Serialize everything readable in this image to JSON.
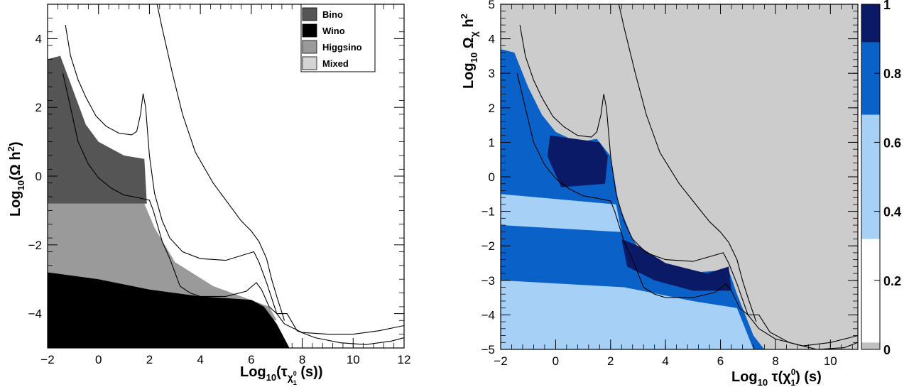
{
  "chart_data": [
    {
      "type": "scatter",
      "xlabel_main": "Log",
      "xlabel_sub": "10",
      "xlabel_rest": "(τ",
      "xlabel_chi": "χ",
      "xlabel_chi_sub": "1",
      "xlabel_chi_sup": "0",
      "xlabel_tail": " (s))",
      "ylabel_main": "Log",
      "ylabel_sub": "10",
      "ylabel_rest": "(Ω h",
      "ylabel_sup": "2",
      "ylabel_tail": ")",
      "xlim": [
        -2,
        12
      ],
      "ylim": [
        -5,
        5
      ],
      "xticks": [
        -2,
        0,
        2,
        4,
        6,
        8,
        10,
        12
      ],
      "xtick_labels": [
        "−2",
        "0",
        "2",
        "4",
        "6",
        "8",
        "10",
        "12"
      ],
      "yticks": [
        -4,
        -2,
        0,
        2,
        4
      ],
      "ytick_labels": [
        "−4",
        "−2",
        "0",
        "2",
        "4"
      ],
      "legend": [
        {
          "name": "Bino",
          "color": "#555555"
        },
        {
          "name": "Wino",
          "color": "#000000"
        },
        {
          "name": "Higgsino",
          "color": "#9a9a9a"
        },
        {
          "name": "Mixed",
          "color": "#d4d4d4"
        }
      ],
      "legend_position": "top-right",
      "regions": [
        {
          "name": "Higgsino",
          "color": "#9a9a9a",
          "polygon": [
            [
              -2,
              -0.8
            ],
            [
              1.8,
              -0.8
            ],
            [
              2.2,
              -1.5
            ],
            [
              3,
              -2.5
            ],
            [
              4.5,
              -3.2
            ],
            [
              6.7,
              -3.8
            ],
            [
              7,
              -4.2
            ],
            [
              6.5,
              -4.2
            ],
            [
              4,
              -3.6
            ],
            [
              -2,
              -3.2
            ]
          ]
        },
        {
          "name": "Bino",
          "color": "#555555",
          "polygon": [
            [
              -2,
              3.4
            ],
            [
              -1.5,
              3.5
            ],
            [
              -1,
              2.5
            ],
            [
              -0.5,
              1.5
            ],
            [
              0,
              1
            ],
            [
              1,
              0.6
            ],
            [
              1.8,
              0.5
            ],
            [
              1.9,
              -0.8
            ],
            [
              -2,
              -0.8
            ]
          ]
        },
        {
          "name": "Wino",
          "color": "#000000",
          "polygon": [
            [
              -2,
              -2.8
            ],
            [
              0,
              -3
            ],
            [
              2,
              -3.3
            ],
            [
              4,
              -3.5
            ],
            [
              6,
              -3.6
            ],
            [
              6.5,
              -3.8
            ],
            [
              7,
              -4.3
            ],
            [
              7.5,
              -5
            ],
            [
              -2,
              -5
            ]
          ]
        }
      ],
      "curves": [
        [
          [
            -1.3,
            4.4
          ],
          [
            -1.1,
            3.5
          ],
          [
            -0.8,
            2.8
          ],
          [
            -0.5,
            2.3
          ],
          [
            -0.1,
            1.75
          ],
          [
            0.3,
            1.45
          ],
          [
            0.8,
            1.25
          ],
          [
            1.3,
            1.2
          ],
          [
            1.5,
            1.3
          ],
          [
            1.65,
            1.8
          ],
          [
            1.75,
            2.4
          ],
          [
            1.85,
            2.0
          ],
          [
            2.0,
            0.6
          ],
          [
            2.2,
            -0.5
          ],
          [
            2.5,
            -1.3
          ],
          [
            2.8,
            -1.8
          ],
          [
            3.3,
            -2.2
          ],
          [
            4.0,
            -2.4
          ],
          [
            5.0,
            -2.45
          ],
          [
            6.1,
            -2.2
          ],
          [
            6.3,
            -2.5
          ],
          [
            6.6,
            -3.1
          ],
          [
            7.0,
            -4.0
          ],
          [
            7.3,
            -4.3
          ],
          [
            8.0,
            -4.55
          ],
          [
            9.0,
            -4.6
          ],
          [
            10.0,
            -4.6
          ],
          [
            11.0,
            -4.5
          ],
          [
            12.0,
            -4.35
          ]
        ],
        [
          [
            -1.4,
            3.0
          ],
          [
            -1.1,
            2.0
          ],
          [
            -0.8,
            1.0
          ],
          [
            -0.4,
            0.35
          ],
          [
            0,
            -0.05
          ],
          [
            0.5,
            -0.35
          ],
          [
            1.0,
            -0.55
          ],
          [
            1.5,
            -0.62
          ],
          [
            2.0,
            -0.7
          ],
          [
            2.15,
            -1.0
          ],
          [
            2.5,
            -1.9
          ],
          [
            2.8,
            -2.4
          ],
          [
            3.2,
            -3.2
          ],
          [
            3.6,
            -3.4
          ],
          [
            4.0,
            -3.5
          ],
          [
            5.0,
            -3.5
          ],
          [
            5.8,
            -3.35
          ],
          [
            6.2,
            -3.1
          ],
          [
            6.4,
            -3.3
          ],
          [
            6.7,
            -3.8
          ],
          [
            7.0,
            -4.0
          ],
          [
            7.4,
            -4.0
          ],
          [
            7.8,
            -4.5
          ],
          [
            8.5,
            -4.7
          ],
          [
            9.5,
            -4.85
          ],
          [
            10.5,
            -4.9
          ],
          [
            11.5,
            -4.8
          ],
          [
            12.0,
            -4.7
          ]
        ],
        [
          [
            2.3,
            5.0
          ],
          [
            2.5,
            4.3
          ],
          [
            2.9,
            3.0
          ],
          [
            3.3,
            1.8
          ],
          [
            3.8,
            0.7
          ],
          [
            4.5,
            -0.2
          ],
          [
            5.1,
            -0.8
          ],
          [
            5.6,
            -1.3
          ],
          [
            6.0,
            -1.6
          ],
          [
            6.3,
            -1.9
          ],
          [
            6.6,
            -2.4
          ],
          [
            6.8,
            -3.0
          ],
          [
            7.0,
            -3.5
          ],
          [
            7.3,
            -4.2
          ]
        ]
      ]
    },
    {
      "type": "heatmap",
      "xlabel_main": "Log",
      "xlabel_sub": "10",
      "xlabel_rest": " τ(χ",
      "xlabel_chi_sub": "1",
      "xlabel_chi_sup": "0",
      "xlabel_tail": ") (s)",
      "ylabel_main": "Log",
      "ylabel_sub": "10",
      "ylabel_omega": " Ω",
      "ylabel_chi": "χ",
      "ylabel_rest": " h",
      "ylabel_sup": "2",
      "xlim": [
        -2,
        11
      ],
      "ylim": [
        -5,
        5
      ],
      "xticks": [
        -2,
        0,
        2,
        4,
        6,
        8,
        10
      ],
      "xtick_labels": [
        "−2",
        "0",
        "2",
        "4",
        "6",
        "8",
        "10"
      ],
      "yticks": [
        -5,
        -4,
        -3,
        -2,
        -1,
        0,
        1,
        2,
        3,
        4,
        5
      ],
      "ytick_labels": [
        "−5",
        "−4",
        "−3",
        "−2",
        "−1",
        "0",
        "1",
        "2",
        "3",
        "4",
        "5"
      ],
      "zlim": [
        0,
        1
      ],
      "colorbar_ticks": [
        0,
        0.2,
        0.4,
        0.6,
        0.8,
        1
      ],
      "colorbar_labels": [
        "0",
        "0.2",
        "0.4",
        "0.6",
        "0.8",
        "1"
      ],
      "colorbar_bins": [
        {
          "from": 0.0,
          "to": 0.02,
          "color": "#c0c0c0"
        },
        {
          "from": 0.02,
          "to": 0.32,
          "color": "#ffffff"
        },
        {
          "from": 0.32,
          "to": 0.68,
          "color": "#a6d0f5"
        },
        {
          "from": 0.68,
          "to": 0.89,
          "color": "#0a62c8"
        },
        {
          "from": 0.89,
          "to": 1.0,
          "color": "#0a1a66"
        }
      ],
      "background_color": "#cccccc",
      "regions": [
        {
          "value": 0.5,
          "color": "#0a62c8",
          "polygon": [
            [
              -2,
              3.7
            ],
            [
              -1.5,
              3.6
            ],
            [
              -1,
              2.6
            ],
            [
              -0.5,
              1.8
            ],
            [
              0,
              1.3
            ],
            [
              0.8,
              1.0
            ],
            [
              1.5,
              1.1
            ],
            [
              2,
              0.6
            ],
            [
              2.3,
              -0.8
            ],
            [
              2.8,
              -1.8
            ],
            [
              3.3,
              -2.4
            ],
            [
              4.5,
              -2.8
            ],
            [
              6.3,
              -2.7
            ],
            [
              6.6,
              -3.4
            ],
            [
              6.9,
              -4.0
            ],
            [
              7.2,
              -4.6
            ],
            [
              7.6,
              -5
            ],
            [
              -2,
              -5
            ]
          ]
        },
        {
          "value": 0.95,
          "color": "#0a1a66",
          "polygon": [
            [
              -0.2,
              1.2
            ],
            [
              1.6,
              1.0
            ],
            [
              1.9,
              0.6
            ],
            [
              1.8,
              -0.2
            ],
            [
              0.2,
              -0.3
            ],
            [
              -0.3,
              0.6
            ]
          ]
        },
        {
          "value": 0.95,
          "color": "#0a1a66",
          "polygon": [
            [
              2.4,
              -1.8
            ],
            [
              3.0,
              -2.0
            ],
            [
              4.0,
              -2.5
            ],
            [
              5.5,
              -2.8
            ],
            [
              6.3,
              -2.6
            ],
            [
              6.4,
              -3.3
            ],
            [
              5.0,
              -3.3
            ],
            [
              3.6,
              -3.0
            ],
            [
              2.6,
              -2.6
            ]
          ]
        },
        {
          "value": 0.5,
          "color": "#a6d0f5",
          "polygon": [
            [
              -2,
              -0.5
            ],
            [
              2.2,
              -0.8
            ],
            [
              2.4,
              -1.6
            ],
            [
              -2,
              -1.4
            ]
          ]
        },
        {
          "value": 0.5,
          "color": "#a6d0f5",
          "polygon": [
            [
              -2,
              -3.0
            ],
            [
              2.5,
              -3.2
            ],
            [
              5.0,
              -3.6
            ],
            [
              6.6,
              -3.8
            ],
            [
              7.2,
              -5
            ],
            [
              -2,
              -5
            ]
          ]
        }
      ],
      "curves": [
        [
          [
            -1.3,
            4.4
          ],
          [
            -1.1,
            3.5
          ],
          [
            -0.8,
            2.8
          ],
          [
            -0.5,
            2.3
          ],
          [
            -0.1,
            1.75
          ],
          [
            0.3,
            1.45
          ],
          [
            0.8,
            1.2
          ],
          [
            1.3,
            1.15
          ],
          [
            1.5,
            1.3
          ],
          [
            1.65,
            1.8
          ],
          [
            1.75,
            2.4
          ],
          [
            1.85,
            2.0
          ],
          [
            2.0,
            0.6
          ],
          [
            2.2,
            -0.5
          ],
          [
            2.5,
            -1.3
          ],
          [
            2.8,
            -1.8
          ],
          [
            3.3,
            -2.2
          ],
          [
            4.0,
            -2.4
          ],
          [
            5.0,
            -2.45
          ],
          [
            6.1,
            -2.2
          ],
          [
            6.3,
            -2.5
          ],
          [
            6.6,
            -3.1
          ],
          [
            7.0,
            -4.0
          ],
          [
            7.4,
            -4.4
          ],
          [
            8.0,
            -4.7
          ],
          [
            9.0,
            -4.9
          ],
          [
            10.0,
            -4.8
          ],
          [
            11.0,
            -4.6
          ]
        ],
        [
          [
            -1.4,
            3.0
          ],
          [
            -1.1,
            2.0
          ],
          [
            -0.8,
            1.0
          ],
          [
            -0.4,
            0.35
          ],
          [
            0,
            -0.05
          ],
          [
            0.5,
            -0.35
          ],
          [
            1.0,
            -0.55
          ],
          [
            1.5,
            -0.62
          ],
          [
            2.0,
            -0.7
          ],
          [
            2.15,
            -1.0
          ],
          [
            2.5,
            -1.9
          ],
          [
            2.8,
            -2.4
          ],
          [
            3.2,
            -3.2
          ],
          [
            3.6,
            -3.4
          ],
          [
            4.0,
            -3.5
          ],
          [
            5.0,
            -3.5
          ],
          [
            5.8,
            -3.35
          ],
          [
            6.2,
            -3.1
          ],
          [
            6.4,
            -3.3
          ],
          [
            6.7,
            -3.8
          ],
          [
            7.0,
            -4.0
          ],
          [
            7.4,
            -4.0
          ],
          [
            7.8,
            -4.5
          ],
          [
            8.5,
            -4.8
          ],
          [
            9.5,
            -5.0
          ],
          [
            10.5,
            -4.95
          ],
          [
            11.0,
            -4.8
          ]
        ],
        [
          [
            2.3,
            5.0
          ],
          [
            2.5,
            4.3
          ],
          [
            2.9,
            3.0
          ],
          [
            3.3,
            1.8
          ],
          [
            3.8,
            0.7
          ],
          [
            4.5,
            -0.2
          ],
          [
            5.1,
            -0.8
          ],
          [
            5.6,
            -1.3
          ],
          [
            6.0,
            -1.6
          ],
          [
            6.3,
            -1.9
          ],
          [
            6.6,
            -2.4
          ],
          [
            6.8,
            -3.0
          ],
          [
            7.0,
            -3.5
          ],
          [
            7.3,
            -4.2
          ]
        ]
      ]
    }
  ]
}
